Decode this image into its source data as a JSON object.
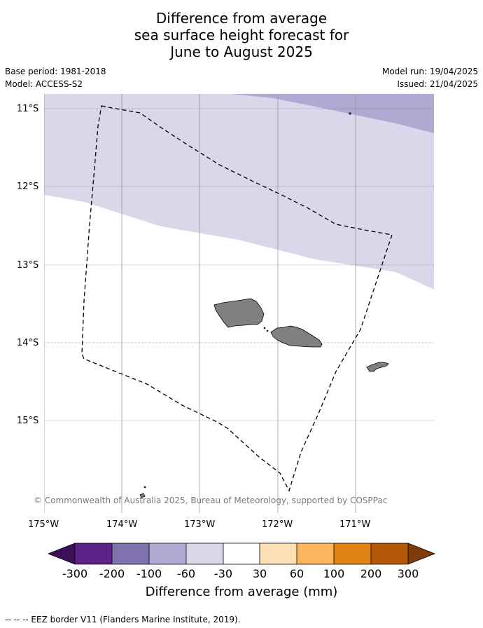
{
  "title": {
    "line1": "Difference from average",
    "line2": "sea surface height forecast for",
    "line3": "June to August 2025"
  },
  "meta": {
    "base_period": "Base period: 1981-2018",
    "model": "Model: ACCESS-S2",
    "model_run": "Model run: 19/04/2025",
    "issued": "Issued: 21/04/2025"
  },
  "map": {
    "lat_labels": [
      "11°S",
      "12°S",
      "13°S",
      "14°S",
      "15°S"
    ],
    "lon_labels": [
      "175°W",
      "174°W",
      "173°W",
      "172°W",
      "171°W"
    ],
    "copyright": "© Commonwealth of Australia 2025, Bureau of Meteorology, supported by COSPPac",
    "colors": {
      "band_minus30_minus60": "#d8d8ea",
      "band_minus60_minus100": "#b0aad2",
      "land": "#808080"
    }
  },
  "colorbar": {
    "ticks": [
      "-300",
      "-200",
      "-100",
      "-60",
      "-30",
      "30",
      "60",
      "100",
      "200",
      "300"
    ],
    "colors": [
      "#3c0f56",
      "#5c2488",
      "#8072ae",
      "#b0aad2",
      "#d8d8ea",
      "#ffffff",
      "#fee0b6",
      "#fbb55c",
      "#e08214",
      "#b35806",
      "#7f3b08"
    ],
    "label": "Difference from average (mm)"
  },
  "legend": {
    "eez": "--  --  -- EEZ border V11 (Flanders Marine Institute, 2019)."
  }
}
